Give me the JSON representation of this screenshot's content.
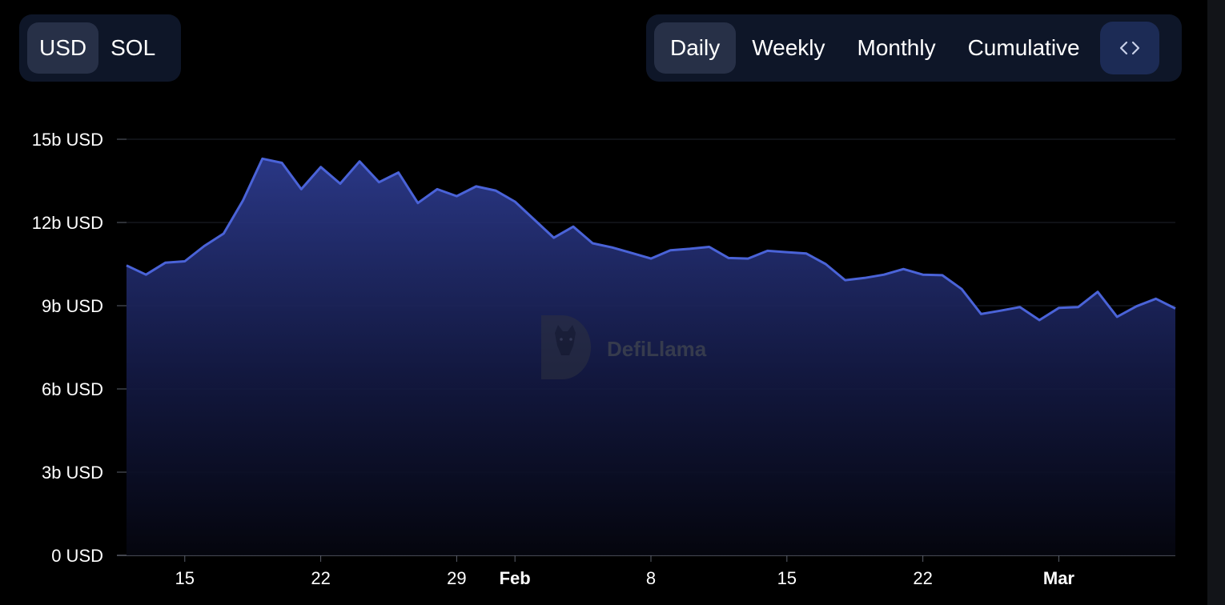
{
  "currency_toggle": {
    "options": [
      "USD",
      "SOL"
    ],
    "selected": "USD"
  },
  "period_toggle": {
    "options": [
      "Daily",
      "Weekly",
      "Monthly",
      "Cumulative"
    ],
    "selected": "Daily",
    "embed_icon": "code-brackets-icon"
  },
  "watermark": "DefiLlama",
  "colors": {
    "line": "#4a63d8",
    "area_top": "#2c3a8c",
    "background": "#000000",
    "toggle_bg": "#0e1628",
    "toggle_active": "#273047",
    "embed_bg": "#1c2b55"
  },
  "chart_data": {
    "type": "area",
    "title": "",
    "xlabel": "",
    "ylabel": "",
    "grid": true,
    "ylim": [
      0,
      15
    ],
    "y_ticks": [
      0,
      3,
      6,
      9,
      12,
      15
    ],
    "y_tick_labels": [
      "0 USD",
      "3b USD",
      "6b USD",
      "9b USD",
      "12b USD",
      "15b USD"
    ],
    "x_tick_labels": [
      {
        "date": "01-15",
        "label": "15",
        "bold": false
      },
      {
        "date": "01-22",
        "label": "22",
        "bold": false
      },
      {
        "date": "01-29",
        "label": "29",
        "bold": false
      },
      {
        "date": "02-01",
        "label": "Feb",
        "bold": true
      },
      {
        "date": "02-08",
        "label": "8",
        "bold": false
      },
      {
        "date": "02-15",
        "label": "15",
        "bold": false
      },
      {
        "date": "02-22",
        "label": "22",
        "bold": false
      },
      {
        "date": "03-01",
        "label": "Mar",
        "bold": true
      }
    ],
    "series": [
      {
        "unit": "b USD",
        "points": [
          [
            "01-12",
            10.45
          ],
          [
            "01-13",
            10.12
          ],
          [
            "01-14",
            10.55
          ],
          [
            "01-15",
            10.6
          ],
          [
            "01-16",
            11.15
          ],
          [
            "01-17",
            11.6
          ],
          [
            "01-18",
            12.8
          ],
          [
            "01-19",
            14.3
          ],
          [
            "01-20",
            14.15
          ],
          [
            "01-21",
            13.2
          ],
          [
            "01-22",
            14.0
          ],
          [
            "01-23",
            13.4
          ],
          [
            "01-24",
            14.2
          ],
          [
            "01-25",
            13.45
          ],
          [
            "01-26",
            13.8
          ],
          [
            "01-27",
            12.7
          ],
          [
            "01-28",
            13.2
          ],
          [
            "01-29",
            12.95
          ],
          [
            "01-30",
            13.3
          ],
          [
            "01-31",
            13.15
          ],
          [
            "02-01",
            12.75
          ],
          [
            "02-02",
            12.1
          ],
          [
            "02-03",
            11.45
          ],
          [
            "02-04",
            11.85
          ],
          [
            "02-05",
            11.25
          ],
          [
            "02-06",
            11.1
          ],
          [
            "02-07",
            10.9
          ],
          [
            "02-08",
            10.7
          ],
          [
            "02-09",
            11.0
          ],
          [
            "02-10",
            11.05
          ],
          [
            "02-11",
            11.12
          ],
          [
            "02-12",
            10.72
          ],
          [
            "02-13",
            10.7
          ],
          [
            "02-14",
            10.98
          ],
          [
            "02-15",
            10.93
          ],
          [
            "02-16",
            10.88
          ],
          [
            "02-17",
            10.5
          ],
          [
            "02-18",
            9.92
          ],
          [
            "02-19",
            10.0
          ],
          [
            "02-20",
            10.12
          ],
          [
            "02-21",
            10.32
          ],
          [
            "02-22",
            10.12
          ],
          [
            "02-23",
            10.1
          ],
          [
            "02-24",
            9.6
          ],
          [
            "02-25",
            8.7
          ],
          [
            "02-26",
            8.82
          ],
          [
            "02-27",
            8.95
          ],
          [
            "02-28",
            8.48
          ],
          [
            "03-01",
            8.92
          ],
          [
            "03-02",
            8.95
          ],
          [
            "03-03",
            9.5
          ],
          [
            "03-04",
            8.6
          ],
          [
            "03-05",
            8.98
          ],
          [
            "03-06",
            9.25
          ],
          [
            "03-07",
            8.9
          ]
        ]
      }
    ]
  }
}
